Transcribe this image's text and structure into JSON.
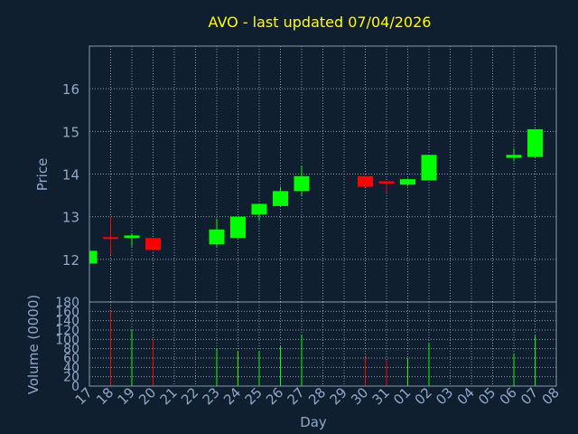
{
  "title": "AVO - last updated 07/04/2026",
  "chart_data": [
    {
      "type": "candlestick",
      "ylabel": "Price",
      "ylim": [
        11,
        17
      ],
      "yticks": [
        12,
        13,
        14,
        15,
        16
      ],
      "grid": true,
      "up_color": "#00ff00",
      "down_color": "#ff0000",
      "candles": [
        {
          "day": "17",
          "open": 11.9,
          "high": 12.2,
          "low": 11.9,
          "close": 12.2
        },
        {
          "day": "18",
          "open": 12.52,
          "high": 13.0,
          "low": 12.1,
          "close": 12.5
        },
        {
          "day": "19",
          "open": 12.5,
          "high": 12.6,
          "low": 12.3,
          "close": 12.56
        },
        {
          "day": "20",
          "open": 12.5,
          "high": 12.5,
          "low": 12.2,
          "close": 12.22
        },
        {
          "day": "23",
          "open": 12.35,
          "high": 12.95,
          "low": 12.3,
          "close": 12.7
        },
        {
          "day": "24",
          "open": 12.5,
          "high": 13.0,
          "low": 12.5,
          "close": 13.0
        },
        {
          "day": "25",
          "open": 13.05,
          "high": 13.3,
          "low": 12.9,
          "close": 13.3
        },
        {
          "day": "26",
          "open": 13.25,
          "high": 13.7,
          "low": 13.25,
          "close": 13.6
        },
        {
          "day": "27",
          "open": 13.6,
          "high": 14.2,
          "low": 13.5,
          "close": 13.95
        },
        {
          "day": "30",
          "open": 13.95,
          "high": 13.95,
          "low": 13.7,
          "close": 13.7
        },
        {
          "day": "31",
          "open": 13.83,
          "high": 13.83,
          "low": 13.57,
          "close": 13.78
        },
        {
          "day": "01",
          "open": 13.75,
          "high": 13.9,
          "low": 13.72,
          "close": 13.88
        },
        {
          "day": "02",
          "open": 13.85,
          "high": 14.45,
          "low": 13.85,
          "close": 14.45
        },
        {
          "day": "06",
          "open": 14.38,
          "high": 14.6,
          "low": 14.3,
          "close": 14.45
        },
        {
          "day": "07",
          "open": 14.4,
          "high": 15.05,
          "low": 14.4,
          "close": 15.05
        }
      ]
    },
    {
      "type": "bar",
      "xlabel": "Day",
      "ylabel": "Volume (0000)",
      "ylim": [
        0,
        180
      ],
      "yticks": [
        0,
        20,
        40,
        60,
        80,
        100,
        120,
        140,
        160,
        180
      ],
      "grid": true,
      "bars": [
        {
          "day": "18",
          "value": 160,
          "color": "#ff0000"
        },
        {
          "day": "19",
          "value": 120,
          "color": "#00ff00"
        },
        {
          "day": "20",
          "value": 100,
          "color": "#ff0000"
        },
        {
          "day": "23",
          "value": 80,
          "color": "#00ff00"
        },
        {
          "day": "24",
          "value": 75,
          "color": "#00ff00"
        },
        {
          "day": "25",
          "value": 75,
          "color": "#00ff00"
        },
        {
          "day": "26",
          "value": 85,
          "color": "#00ff00"
        },
        {
          "day": "27",
          "value": 110,
          "color": "#00ff00"
        },
        {
          "day": "30",
          "value": 62,
          "color": "#ff0000"
        },
        {
          "day": "31",
          "value": 55,
          "color": "#ff0000"
        },
        {
          "day": "01",
          "value": 60,
          "color": "#00ff00"
        },
        {
          "day": "02",
          "value": 92,
          "color": "#00ff00"
        },
        {
          "day": "06",
          "value": 70,
          "color": "#00ff00"
        },
        {
          "day": "07",
          "value": 108,
          "color": "#00ff00"
        }
      ]
    }
  ],
  "x_days": [
    "17",
    "18",
    "19",
    "20",
    "21",
    "22",
    "23",
    "24",
    "25",
    "26",
    "27",
    "28",
    "29",
    "30",
    "31",
    "01",
    "02",
    "03",
    "04",
    "05",
    "06",
    "07",
    "08"
  ]
}
